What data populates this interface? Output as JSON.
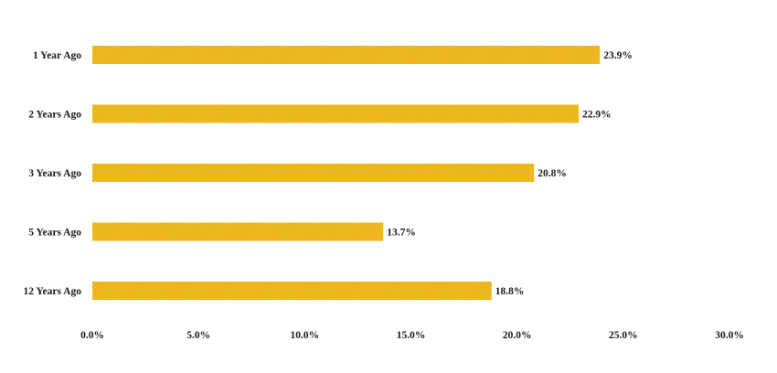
{
  "chart_data": {
    "type": "bar",
    "orientation": "horizontal",
    "categories": [
      "1 Year Ago",
      "2 Years Ago",
      "3 Years Ago",
      "5 Years Ago",
      "12 Years Ago"
    ],
    "values": [
      23.9,
      22.9,
      20.8,
      13.7,
      18.8
    ],
    "data_labels": [
      "23.9%",
      "22.9%",
      "20.8%",
      "13.7%",
      "18.8%"
    ],
    "xlim": [
      0,
      30
    ],
    "x_ticks": [
      0,
      5,
      10,
      15,
      20,
      25,
      30
    ],
    "x_tick_labels": [
      "0.0%",
      "5.0%",
      "10.0%",
      "15.0%",
      "20.0%",
      "25.0%",
      "30.0%"
    ],
    "title": "",
    "xlabel": "",
    "ylabel": "",
    "grid": false,
    "legend": "none",
    "bar_color": "#F2C12E",
    "bar_pattern": "diagonal-hatch"
  }
}
